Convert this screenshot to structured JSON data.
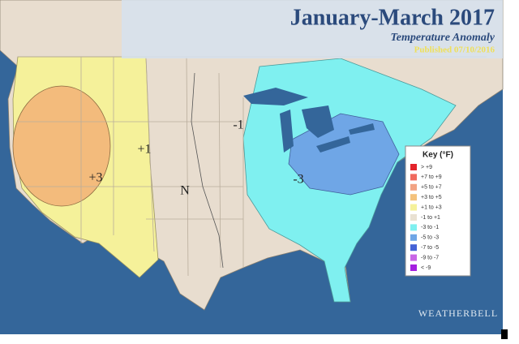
{
  "header": {
    "title": "January-March 2017",
    "subtitle": "Temperature Anomaly",
    "published": "Published 07/10/2016"
  },
  "map_labels": [
    "+1",
    "+3",
    "-1",
    "-3",
    "N"
  ],
  "key": {
    "title": "Key (°F)",
    "items": [
      {
        "label": "> +9",
        "color": "#e3242b"
      },
      {
        "label": "+7 to +9",
        "color": "#f06a5e"
      },
      {
        "label": "+5 to +7",
        "color": "#f2a383"
      },
      {
        "label": "+3 to +5",
        "color": "#f4c27c"
      },
      {
        "label": "+1 to +3",
        "color": "#f5f19a"
      },
      {
        "label": "-1 to +1",
        "color": "#e9e1d2"
      },
      {
        "label": "-3 to -1",
        "color": "#7ff0f0"
      },
      {
        "label": "-5 to -3",
        "color": "#6fa6e6"
      },
      {
        "label": "-7 to -5",
        "color": "#4462d6"
      },
      {
        "label": "-9 to -7",
        "color": "#c866e6"
      },
      {
        "label": "< -9",
        "color": "#a41fe0"
      }
    ]
  },
  "logo": "WEATHERBELL"
}
